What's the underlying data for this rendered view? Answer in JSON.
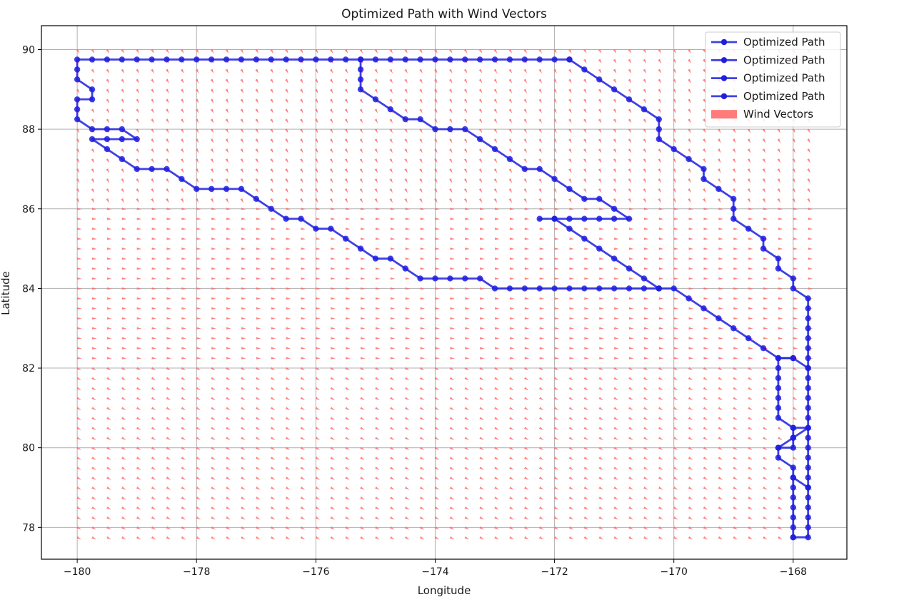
{
  "chart_data": {
    "type": "line",
    "title": "Optimized Path with Wind Vectors",
    "xlabel": "Longitude",
    "ylabel": "Latitude",
    "xlim": [
      -180.6,
      -167.1
    ],
    "ylim": [
      77.2,
      90.6
    ],
    "xticks": [
      -180,
      -178,
      -176,
      -174,
      -172,
      -170,
      -168
    ],
    "xtick_labels": [
      "−180",
      "−178",
      "−176",
      "−174",
      "−172",
      "−170",
      "−168"
    ],
    "yticks": [
      78,
      80,
      82,
      84,
      86,
      88,
      90
    ],
    "ytick_labels": [
      "78",
      "80",
      "82",
      "84",
      "86",
      "88",
      "90"
    ],
    "grid": true,
    "legend_position": "top-right",
    "colors": {
      "path": "#1f1fe0",
      "wind": "#ff6b6b"
    },
    "legend": [
      {
        "label": "Optimized Path",
        "kind": "line"
      },
      {
        "label": "Optimized Path",
        "kind": "line"
      },
      {
        "label": "Optimized Path",
        "kind": "line"
      },
      {
        "label": "Optimized Path",
        "kind": "line"
      },
      {
        "label": "Wind Vectors",
        "kind": "patch"
      }
    ],
    "wind_grid": {
      "lon_start": -180,
      "lon_end": -167.75,
      "lon_step": 0.25,
      "lat_start": 77.75,
      "lat_end": 90,
      "lat_step": 0.25
    },
    "series": [
      {
        "name": "Optimized Path",
        "points": [
          [
            -171.75,
            89.75
          ],
          [
            -172,
            89.75
          ],
          [
            -172.25,
            89.75
          ],
          [
            -172.5,
            89.75
          ],
          [
            -172.75,
            89.75
          ],
          [
            -173,
            89.75
          ],
          [
            -173.25,
            89.75
          ],
          [
            -173.5,
            89.75
          ],
          [
            -173.75,
            89.75
          ],
          [
            -174,
            89.75
          ],
          [
            -174.25,
            89.75
          ],
          [
            -174.5,
            89.75
          ],
          [
            -174.75,
            89.75
          ],
          [
            -175,
            89.75
          ],
          [
            -175.25,
            89.75
          ],
          [
            -175.25,
            89.5
          ],
          [
            -175.25,
            89.25
          ],
          [
            -175.25,
            89
          ],
          [
            -175,
            88.75
          ],
          [
            -174.75,
            88.5
          ],
          [
            -174.5,
            88.25
          ],
          [
            -174.25,
            88.25
          ],
          [
            -174,
            88
          ],
          [
            -173.75,
            88
          ],
          [
            -173.5,
            88
          ],
          [
            -173.25,
            87.75
          ],
          [
            -173,
            87.5
          ],
          [
            -172.75,
            87.25
          ],
          [
            -172.5,
            87
          ],
          [
            -172.25,
            87
          ],
          [
            -172,
            86.75
          ],
          [
            -171.75,
            86.5
          ],
          [
            -171.5,
            86.25
          ],
          [
            -171.25,
            86.25
          ],
          [
            -171,
            86
          ],
          [
            -170.75,
            85.75
          ],
          [
            -171,
            85.75
          ],
          [
            -171.25,
            85.75
          ],
          [
            -171.5,
            85.75
          ],
          [
            -171.75,
            85.75
          ],
          [
            -172,
            85.75
          ],
          [
            -172.25,
            85.75
          ],
          [
            -172,
            85.75
          ],
          [
            -171.75,
            85.5
          ],
          [
            -171.5,
            85.25
          ],
          [
            -171.25,
            85
          ],
          [
            -171,
            84.75
          ],
          [
            -170.75,
            84.5
          ],
          [
            -170.5,
            84.25
          ],
          [
            -170.25,
            84
          ]
        ]
      },
      {
        "name": "Optimized Path",
        "points": [
          [
            -171.75,
            89.75
          ],
          [
            -171.5,
            89.5
          ],
          [
            -171.25,
            89.25
          ],
          [
            -171,
            89
          ],
          [
            -170.75,
            88.75
          ],
          [
            -170.5,
            88.5
          ],
          [
            -170.25,
            88.25
          ],
          [
            -170.25,
            88
          ],
          [
            -170.25,
            87.75
          ],
          [
            -170,
            87.5
          ],
          [
            -169.75,
            87.25
          ],
          [
            -169.5,
            87
          ],
          [
            -169.5,
            86.75
          ],
          [
            -169.25,
            86.5
          ],
          [
            -169,
            86.25
          ],
          [
            -169,
            86
          ],
          [
            -169,
            85.75
          ],
          [
            -168.75,
            85.5
          ],
          [
            -168.5,
            85.25
          ],
          [
            -168.5,
            85
          ],
          [
            -168.25,
            84.75
          ],
          [
            -168.25,
            84.5
          ],
          [
            -168,
            84.25
          ],
          [
            -168,
            84
          ],
          [
            -167.75,
            83.75
          ],
          [
            -167.75,
            83.5
          ],
          [
            -167.75,
            83.25
          ],
          [
            -167.75,
            83
          ],
          [
            -167.75,
            82.75
          ],
          [
            -167.75,
            82.5
          ],
          [
            -167.75,
            82.25
          ],
          [
            -167.75,
            82
          ],
          [
            -167.75,
            81.75
          ],
          [
            -167.75,
            81.5
          ],
          [
            -167.75,
            81.25
          ],
          [
            -167.75,
            81
          ],
          [
            -167.75,
            80.75
          ],
          [
            -167.75,
            80.5
          ],
          [
            -167.75,
            80.25
          ],
          [
            -167.75,
            80
          ],
          [
            -167.75,
            79.75
          ],
          [
            -167.75,
            79.5
          ],
          [
            -167.75,
            79.25
          ],
          [
            -167.75,
            79
          ],
          [
            -167.75,
            78.75
          ],
          [
            -167.75,
            78.5
          ],
          [
            -167.75,
            78.25
          ],
          [
            -167.75,
            78
          ],
          [
            -167.75,
            77.75
          ],
          [
            -168,
            77.75
          ]
        ]
      },
      {
        "name": "Optimized Path",
        "points": [
          [
            -170.25,
            84
          ],
          [
            -170,
            84
          ],
          [
            -169.75,
            83.75
          ],
          [
            -169.5,
            83.5
          ],
          [
            -169.25,
            83.25
          ],
          [
            -169,
            83
          ],
          [
            -168.75,
            82.75
          ],
          [
            -168.5,
            82.5
          ],
          [
            -168.25,
            82.25
          ],
          [
            -168,
            82.25
          ],
          [
            -167.75,
            82
          ]
        ]
      },
      {
        "name": "Optimized Path",
        "points": [
          [
            -175.25,
            89.75
          ],
          [
            -175.5,
            89.75
          ],
          [
            -175.75,
            89.75
          ],
          [
            -176,
            89.75
          ],
          [
            -176.25,
            89.75
          ],
          [
            -176.5,
            89.75
          ],
          [
            -176.75,
            89.75
          ],
          [
            -177,
            89.75
          ],
          [
            -177.25,
            89.75
          ],
          [
            -177.5,
            89.75
          ],
          [
            -177.75,
            89.75
          ],
          [
            -178,
            89.75
          ],
          [
            -178.25,
            89.75
          ],
          [
            -178.5,
            89.75
          ],
          [
            -178.75,
            89.75
          ],
          [
            -179,
            89.75
          ],
          [
            -179.25,
            89.75
          ],
          [
            -179.5,
            89.75
          ],
          [
            -179.75,
            89.75
          ],
          [
            -180,
            89.75
          ],
          [
            -180,
            89.5
          ],
          [
            -180,
            89.25
          ],
          [
            -179.75,
            89
          ],
          [
            -179.75,
            88.75
          ],
          [
            -180,
            88.75
          ],
          [
            -180,
            88.5
          ],
          [
            -180,
            88.25
          ],
          [
            -179.75,
            88
          ],
          [
            -179.5,
            88
          ],
          [
            -179.25,
            88
          ],
          [
            -179,
            87.75
          ],
          [
            -179.25,
            87.75
          ],
          [
            -179.5,
            87.75
          ],
          [
            -179.75,
            87.75
          ],
          [
            -179.5,
            87.5
          ],
          [
            -179.25,
            87.25
          ],
          [
            -179,
            87
          ],
          [
            -178.75,
            87
          ],
          [
            -178.5,
            87
          ],
          [
            -178.25,
            86.75
          ],
          [
            -178,
            86.5
          ],
          [
            -177.75,
            86.5
          ],
          [
            -177.5,
            86.5
          ],
          [
            -177.25,
            86.5
          ],
          [
            -177,
            86.25
          ],
          [
            -176.75,
            86
          ],
          [
            -176.5,
            85.75
          ],
          [
            -176.25,
            85.75
          ],
          [
            -176,
            85.5
          ],
          [
            -175.75,
            85.5
          ],
          [
            -175.5,
            85.25
          ],
          [
            -175.25,
            85
          ],
          [
            -175,
            84.75
          ],
          [
            -174.75,
            84.75
          ],
          [
            -174.5,
            84.5
          ],
          [
            -174.25,
            84.25
          ],
          [
            -174,
            84.25
          ],
          [
            -173.75,
            84.25
          ],
          [
            -173.5,
            84.25
          ],
          [
            -173.25,
            84.25
          ],
          [
            -173,
            84
          ],
          [
            -172.75,
            84
          ],
          [
            -172.5,
            84
          ],
          [
            -172.25,
            84
          ],
          [
            -172,
            84
          ],
          [
            -171.75,
            84
          ],
          [
            -171.5,
            84
          ],
          [
            -171.25,
            84
          ],
          [
            -171,
            84
          ],
          [
            -170.75,
            84
          ],
          [
            -170.5,
            84
          ],
          [
            -170.25,
            84
          ]
        ]
      },
      {
        "name": "Optimized Path",
        "points": [
          [
            -168,
            77.75
          ],
          [
            -168,
            78
          ],
          [
            -168,
            78.25
          ],
          [
            -168,
            78.5
          ],
          [
            -168,
            78.75
          ],
          [
            -168,
            79
          ],
          [
            -168,
            79.25
          ],
          [
            -167.75,
            79
          ],
          [
            -168,
            79.25
          ],
          [
            -168,
            79.5
          ],
          [
            -168.25,
            79.75
          ],
          [
            -168.25,
            80
          ],
          [
            -168,
            80.25
          ],
          [
            -167.75,
            80.5
          ],
          [
            -168,
            80.5
          ],
          [
            -168.25,
            80.75
          ],
          [
            -168.25,
            81
          ],
          [
            -168.25,
            81.25
          ],
          [
            -168.25,
            81.5
          ],
          [
            -168.25,
            81.75
          ],
          [
            -168.25,
            82
          ],
          [
            -168.25,
            82.25
          ],
          [
            -168,
            82.25
          ]
        ]
      },
      {
        "name": "Optimized Path",
        "points": [
          [
            -168,
            80.5
          ],
          [
            -168,
            80.25
          ],
          [
            -168,
            80
          ],
          [
            -168.25,
            80
          ]
        ]
      }
    ]
  }
}
